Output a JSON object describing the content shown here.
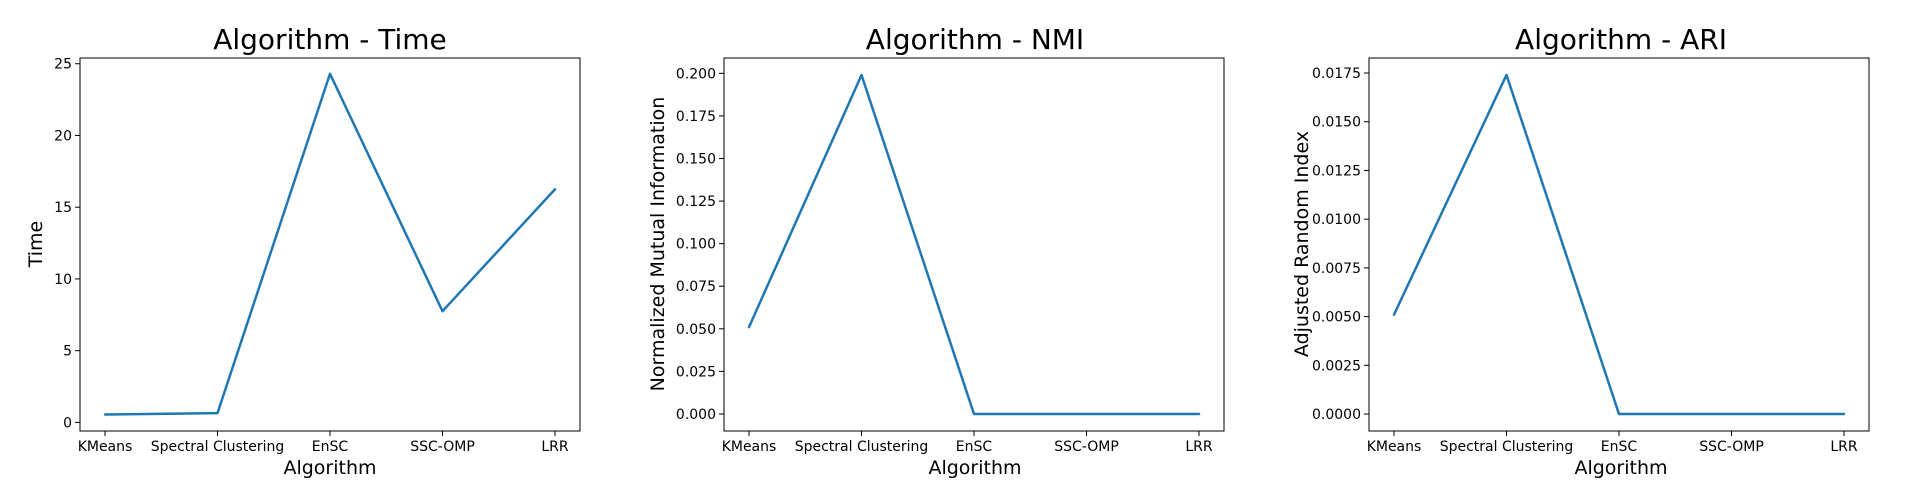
{
  "colors": {
    "line": "#1f77b4",
    "background": "#ffffff",
    "axes": "#000000"
  },
  "chart_data": [
    {
      "type": "line",
      "title": "Algorithm - Time",
      "xlabel": "Algorithm",
      "ylabel": "Time",
      "categories": [
        "KMeans",
        "Spectral Clustering",
        "EnSC",
        "SSC-OMP",
        "LRR"
      ],
      "series": [
        {
          "values": [
            0.55,
            0.65,
            24.3,
            7.75,
            16.25
          ]
        }
      ],
      "ylim": [
        -0.6,
        25.4
      ],
      "yticks": [
        0,
        5,
        10,
        15,
        20,
        25
      ],
      "ytick_labels": [
        "0",
        "5",
        "10",
        "15",
        "20",
        "25"
      ],
      "grid": false,
      "legend": "none"
    },
    {
      "type": "line",
      "title": "Algorithm - NMI",
      "xlabel": "Algorithm",
      "ylabel": "Normalized Mutual Information",
      "categories": [
        "KMeans",
        "Spectral Clustering",
        "EnSC",
        "SSC-OMP",
        "LRR"
      ],
      "series": [
        {
          "values": [
            0.051,
            0.199,
            0.0,
            0.0,
            0.0
          ]
        }
      ],
      "ylim": [
        -0.01,
        0.209
      ],
      "yticks": [
        0,
        0.025,
        0.05,
        0.075,
        0.1,
        0.125,
        0.15,
        0.175,
        0.2
      ],
      "ytick_labels": [
        "0.000",
        "0.025",
        "0.050",
        "0.075",
        "0.100",
        "0.125",
        "0.150",
        "0.175",
        "0.200"
      ],
      "grid": false,
      "legend": "none"
    },
    {
      "type": "line",
      "title": "Algorithm - ARI",
      "xlabel": "Algorithm",
      "ylabel": "Adjusted Random Index",
      "categories": [
        "KMeans",
        "Spectral Clustering",
        "EnSC",
        "SSC-OMP",
        "LRR"
      ],
      "series": [
        {
          "values": [
            0.0051,
            0.0174,
            0.0,
            0.0,
            0.0
          ]
        }
      ],
      "ylim": [
        -0.00087,
        0.01827
      ],
      "yticks": [
        0,
        0.0025,
        0.005,
        0.0075,
        0.01,
        0.0125,
        0.015,
        0.0175
      ],
      "ytick_labels": [
        "0.0000",
        "0.0025",
        "0.0050",
        "0.0075",
        "0.0100",
        "0.0125",
        "0.0150",
        "0.0175"
      ],
      "grid": false,
      "legend": "none"
    }
  ]
}
